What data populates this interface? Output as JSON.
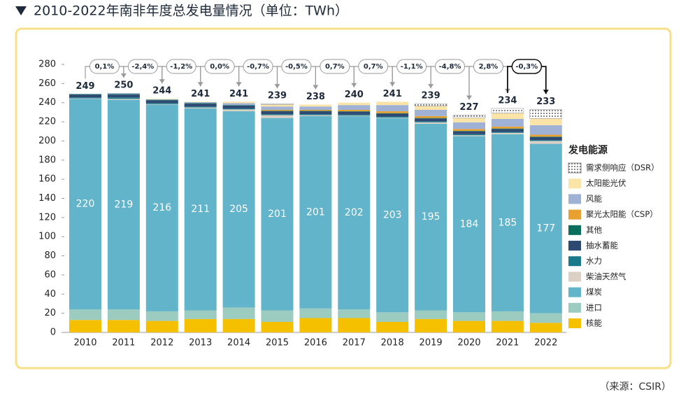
{
  "chart_data": {
    "type": "stacked_bar",
    "title": "2010-2022年南非年度总发电量情况（单位：TWh）",
    "source": "（来源：CSIR）",
    "legend_title": "发电能源",
    "categories": [
      "2010",
      "2011",
      "2012",
      "2013",
      "2014",
      "2015",
      "2016",
      "2017",
      "2018",
      "2019",
      "2020",
      "2021",
      "2022"
    ],
    "ylim": [
      0,
      280
    ],
    "yticks": [
      0,
      20,
      40,
      60,
      80,
      100,
      120,
      140,
      160,
      180,
      200,
      220,
      240,
      260,
      280
    ],
    "totals": [
      249,
      250,
      244,
      241,
      241,
      239,
      238,
      240,
      241,
      239,
      227,
      234,
      233
    ],
    "changes": [
      "0,1%",
      "-2,4%",
      "-1,2%",
      "0,0%",
      "-0,7%",
      "-0,5%",
      "0,7%",
      "0,7%",
      "-1,1%",
      "-4,8%",
      "2,8%",
      "-0,3%"
    ],
    "labeled_series": 2,
    "series": [
      {
        "name": "核能",
        "color": "#f5c000",
        "values": [
          13,
          13,
          12,
          14,
          14,
          11,
          15,
          15,
          11,
          14,
          12,
          12,
          10
        ]
      },
      {
        "name": "进口",
        "color": "#9ccbbf",
        "values": [
          11,
          11,
          10,
          9,
          12,
          12,
          10,
          9,
          10,
          9,
          9,
          10,
          10
        ]
      },
      {
        "name": "煤炭",
        "color": "#62b4ca",
        "values": [
          220,
          219,
          216,
          211,
          205,
          201,
          201,
          202,
          203,
          195,
          184,
          185,
          177
        ]
      },
      {
        "name": "柴油天然气",
        "color": "#dccfc3",
        "values": [
          0.5,
          1,
          0.5,
          1,
          2,
          3,
          1,
          0.5,
          0.5,
          1.5,
          1,
          1.5,
          3
        ]
      },
      {
        "name": "水力",
        "color": "#1a7a8c",
        "values": [
          1,
          1.5,
          1,
          1,
          1,
          1,
          1,
          1,
          1,
          1,
          1,
          1,
          1
        ]
      },
      {
        "name": "抽水蓄能",
        "color": "#2e4a72",
        "values": [
          3,
          3,
          3,
          3,
          3,
          3,
          3,
          3,
          3,
          3,
          3,
          3,
          3
        ]
      },
      {
        "name": "其他",
        "color": "#0a6e5c",
        "values": [
          0.5,
          0.5,
          0.5,
          0.5,
          0.5,
          0.5,
          0.5,
          0.5,
          0.5,
          0.5,
          0.5,
          0.5,
          0.5
        ]
      },
      {
        "name": "聚光太阳能（CSP）",
        "color": "#e8a030",
        "values": [
          0,
          0,
          0,
          0,
          0,
          1,
          1,
          1.5,
          2,
          2,
          2,
          2,
          2
        ]
      },
      {
        "name": "风能",
        "color": "#9fb1d4",
        "values": [
          0,
          1,
          0.5,
          1,
          2,
          3.5,
          3.5,
          5,
          6.5,
          6.5,
          7,
          8,
          10
        ]
      },
      {
        "name": "太阳能光伏",
        "color": "#fbe4a8",
        "values": [
          0,
          0,
          0.5,
          0.5,
          1.5,
          2,
          2,
          2.5,
          3.5,
          4,
          4.5,
          6,
          7
        ]
      },
      {
        "name": "需求侧响应（DSR）",
        "color": "#ffffff",
        "pattern": "dots",
        "values": [
          0,
          0,
          0,
          0,
          0,
          1,
          0,
          0,
          0,
          2.5,
          3,
          5,
          9.5
        ]
      }
    ]
  }
}
